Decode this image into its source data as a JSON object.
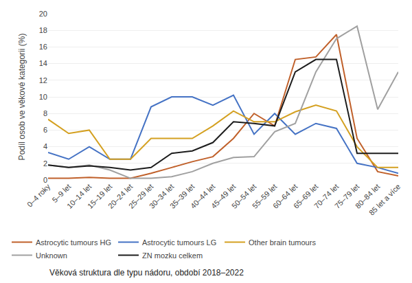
{
  "chart_data": {
    "type": "line",
    "categories": [
      "0–4 roky",
      "5–9 let",
      "10–14 let",
      "15–19 let",
      "20–24 let",
      "25–29 let",
      "30–34 let",
      "35–39 let",
      "40–44 let",
      "45–49 let",
      "50–54 let",
      "55–59 let",
      "60–64 let",
      "65–69 let",
      "70–74 let",
      "75–79 let",
      "80–84 let",
      "85 let a více"
    ],
    "series": [
      {
        "name": "Astrocytic tumours HG",
        "color": "#C0602A",
        "values": [
          0.2,
          0.2,
          0.3,
          0.2,
          0.2,
          0.8,
          1.5,
          2.2,
          2.8,
          5.0,
          8.0,
          6.5,
          14.5,
          14.8,
          17.5,
          5.0,
          1.0,
          0.5
        ]
      },
      {
        "name": "Astrocytic tumours LG",
        "color": "#4472C4",
        "values": [
          3.3,
          2.5,
          4.0,
          2.5,
          2.5,
          8.8,
          10.0,
          10.0,
          9.0,
          10.2,
          5.5,
          8.0,
          5.5,
          6.8,
          6.2,
          2.0,
          1.5,
          0.8
        ]
      },
      {
        "name": "Other brain tumours",
        "color": "#D4A020",
        "values": [
          7.3,
          5.6,
          6.0,
          2.5,
          2.5,
          5.0,
          5.0,
          5.0,
          6.5,
          8.3,
          7.0,
          7.0,
          8.2,
          9.0,
          8.3,
          4.0,
          1.5,
          1.5
        ]
      },
      {
        "name": "Unknown",
        "color": "#A0A0A0",
        "values": [
          1.8,
          1.5,
          1.8,
          1.2,
          0.2,
          0.2,
          0.4,
          1.0,
          2.0,
          2.7,
          2.8,
          5.8,
          6.8,
          13.0,
          17.0,
          18.5,
          8.5,
          13.0
        ]
      },
      {
        "name": "ZN mozku celkem",
        "color": "#1C1C1C",
        "values": [
          1.8,
          1.5,
          1.7,
          1.5,
          1.2,
          1.5,
          3.2,
          3.5,
          4.5,
          7.0,
          6.8,
          6.5,
          13.0,
          14.5,
          14.5,
          3.2,
          3.2,
          3.2
        ]
      }
    ],
    "ylabel": "Podíl osob ve věkové kategorii (%)",
    "annotations": [
      "Věková struktura dle typu nádoru, období 2018–2022"
    ],
    "ylim": [
      0,
      20
    ],
    "yticks": [
      0,
      2,
      4,
      6,
      8,
      10,
      12,
      14,
      16,
      18,
      20
    ],
    "grid": true,
    "legend": "bottom"
  }
}
